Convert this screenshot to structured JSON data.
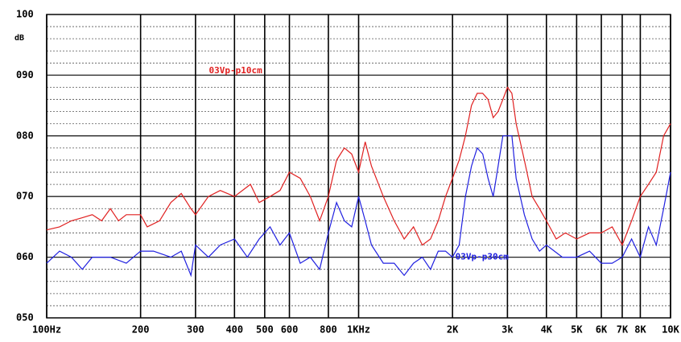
{
  "chart_data": {
    "type": "line",
    "xscale": "log",
    "grid": true,
    "ylabel": "dB",
    "xlim": [
      100,
      10000
    ],
    "ylim": [
      50,
      100
    ],
    "xticks": [
      {
        "value": 100,
        "label": "100Hz"
      },
      200,
      300,
      400,
      500,
      600,
      800,
      {
        "value": 1000,
        "label": "1KHz"
      },
      {
        "value": 2000,
        "label": "2K"
      },
      {
        "value": 3000,
        "label": "3k"
      },
      {
        "value": 4000,
        "label": "4K"
      },
      {
        "value": 5000,
        "label": "5K"
      },
      {
        "value": 6000,
        "label": "6K"
      },
      {
        "value": 7000,
        "label": "7K"
      },
      {
        "value": 8000,
        "label": "8K"
      },
      {
        "value": 10000,
        "label": "10K"
      }
    ],
    "yticks": [
      {
        "value": 100,
        "label": "100"
      },
      {
        "value": 90,
        "label": "090"
      },
      {
        "value": 80,
        "label": "080"
      },
      {
        "value": 70,
        "label": "070"
      },
      {
        "value": 60,
        "label": "060"
      },
      {
        "value": 50,
        "label": "050"
      }
    ],
    "yminorticks": [
      52,
      54,
      56,
      58,
      62,
      64,
      66,
      68,
      72,
      74,
      76,
      78,
      82,
      84,
      86,
      88,
      92,
      94,
      96,
      98
    ],
    "series": [
      {
        "name": "03Vp-p10cm",
        "color": "#e02020",
        "x": [
          100,
          110,
          120,
          130,
          140,
          150,
          160,
          170,
          180,
          200,
          210,
          230,
          250,
          270,
          290,
          300,
          330,
          360,
          400,
          450,
          480,
          520,
          560,
          600,
          650,
          700,
          750,
          800,
          850,
          900,
          950,
          1000,
          1050,
          1100,
          1200,
          1300,
          1400,
          1500,
          1600,
          1700,
          1800,
          1900,
          2000,
          2100,
          2200,
          2300,
          2400,
          2500,
          2600,
          2700,
          2800,
          2900,
          3000,
          3100,
          3200,
          3400,
          3600,
          3800,
          4000,
          4300,
          4600,
          5000,
          5500,
          6000,
          6500,
          7000,
          7500,
          8000,
          8500,
          9000,
          9500,
          10000
        ],
        "values": [
          64.5,
          65,
          66,
          66.5,
          67,
          66,
          68,
          66,
          67,
          67,
          65,
          66,
          69,
          70.5,
          68,
          67,
          70,
          71,
          70,
          72,
          69,
          70,
          71,
          74,
          73,
          70,
          66,
          70,
          76,
          78,
          77,
          74,
          79,
          75,
          70,
          66,
          63,
          65,
          62,
          63,
          66,
          70,
          73,
          76,
          80,
          85,
          87,
          87,
          86,
          83,
          84,
          86,
          88,
          87,
          82,
          76,
          70,
          68,
          66,
          63,
          64,
          63,
          64,
          64,
          65,
          62,
          66,
          70,
          72,
          74,
          80,
          82
        ]
      },
      {
        "name": "03Vp-p30cm",
        "color": "#2020e0",
        "x": [
          100,
          110,
          120,
          130,
          140,
          160,
          180,
          200,
          220,
          250,
          270,
          290,
          300,
          330,
          360,
          400,
          440,
          480,
          520,
          560,
          600,
          650,
          700,
          750,
          800,
          850,
          900,
          950,
          1000,
          1050,
          1100,
          1200,
          1300,
          1400,
          1500,
          1600,
          1700,
          1800,
          1900,
          2000,
          2100,
          2200,
          2300,
          2400,
          2500,
          2600,
          2700,
          2800,
          2900,
          3000,
          3100,
          3200,
          3400,
          3600,
          3800,
          4000,
          4500,
          5000,
          5500,
          6000,
          6500,
          7000,
          7500,
          8000,
          8500,
          9000,
          9500,
          10000
        ],
        "values": [
          59,
          61,
          60,
          58,
          60,
          60,
          59,
          61,
          61,
          60,
          61,
          57,
          62,
          60,
          62,
          63,
          60,
          63,
          65,
          62,
          64,
          59,
          60,
          58,
          64,
          69,
          66,
          65,
          70,
          66,
          62,
          59,
          59,
          57,
          59,
          60,
          58,
          61,
          61,
          60,
          62,
          70,
          75,
          78,
          77,
          73,
          70,
          75,
          80,
          80,
          80,
          73,
          67,
          63,
          61,
          62,
          60,
          60,
          61,
          59,
          59,
          60,
          63,
          60,
          65,
          62,
          68,
          74
        ]
      }
    ]
  }
}
